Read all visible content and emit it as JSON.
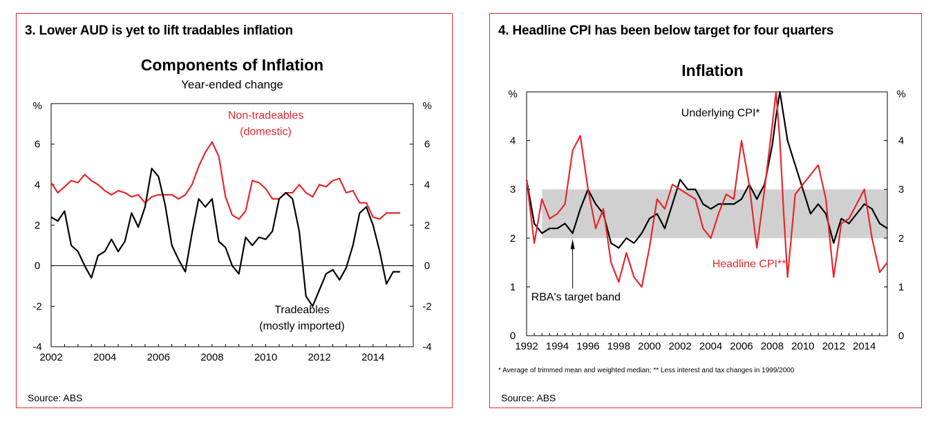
{
  "panels": [
    {
      "heading": "3. Lower AUD is yet to lift tradables inflation",
      "source": "Source: ABS"
    },
    {
      "heading": "4. Headline CPI has been below target for four quarters",
      "source": "Source: ABS"
    }
  ],
  "chart_data": [
    {
      "type": "line",
      "title": "Components of Inflation",
      "subtitle": "Year-ended change",
      "ylabel": "%",
      "ylim": [
        -4,
        8
      ],
      "yticks": [
        -4,
        -2,
        0,
        2,
        4,
        6
      ],
      "xlim": [
        2002,
        2015.5
      ],
      "xticks": [
        2002,
        2004,
        2006,
        2008,
        2010,
        2012,
        2014
      ],
      "grid": false,
      "zero_line": true,
      "series": [
        {
          "name": "Non-tradeables (domestic)",
          "label_lines": [
            "Non-tradeables",
            "(domestic)"
          ],
          "color": "#e8262c",
          "x": [
            2002.0,
            2002.25,
            2002.5,
            2002.75,
            2003.0,
            2003.25,
            2003.5,
            2003.75,
            2004.0,
            2004.25,
            2004.5,
            2004.75,
            2005.0,
            2005.25,
            2005.5,
            2005.75,
            2006.0,
            2006.25,
            2006.5,
            2006.75,
            2007.0,
            2007.25,
            2007.5,
            2007.75,
            2008.0,
            2008.25,
            2008.5,
            2008.75,
            2009.0,
            2009.25,
            2009.5,
            2009.75,
            2010.0,
            2010.25,
            2010.5,
            2010.75,
            2011.0,
            2011.25,
            2011.5,
            2011.75,
            2012.0,
            2012.25,
            2012.5,
            2012.75,
            2013.0,
            2013.25,
            2013.5,
            2013.75,
            2014.0,
            2014.25,
            2014.5,
            2014.75,
            2015.0
          ],
          "values": [
            4.1,
            3.6,
            3.9,
            4.2,
            4.1,
            4.5,
            4.2,
            4.0,
            3.7,
            3.5,
            3.7,
            3.6,
            3.4,
            3.5,
            3.1,
            3.4,
            3.5,
            3.5,
            3.5,
            3.3,
            3.5,
            4.0,
            4.9,
            5.6,
            6.1,
            5.4,
            3.4,
            2.5,
            2.3,
            2.7,
            4.2,
            4.1,
            3.8,
            3.3,
            3.3,
            3.6,
            3.6,
            4.0,
            3.6,
            3.4,
            4.0,
            3.9,
            4.2,
            4.3,
            3.6,
            3.7,
            3.1,
            3.1,
            2.4,
            2.3,
            2.6,
            2.6,
            2.6
          ]
        },
        {
          "name": "Tradeables (mostly imported)",
          "label_lines": [
            "Tradeables",
            "(mostly imported)"
          ],
          "color": "#000000",
          "x": [
            2002.0,
            2002.25,
            2002.5,
            2002.75,
            2003.0,
            2003.25,
            2003.5,
            2003.75,
            2004.0,
            2004.25,
            2004.5,
            2004.75,
            2005.0,
            2005.25,
            2005.5,
            2005.75,
            2006.0,
            2006.25,
            2006.5,
            2006.75,
            2007.0,
            2007.25,
            2007.5,
            2007.75,
            2008.0,
            2008.25,
            2008.5,
            2008.75,
            2009.0,
            2009.25,
            2009.5,
            2009.75,
            2010.0,
            2010.25,
            2010.5,
            2010.75,
            2011.0,
            2011.25,
            2011.5,
            2011.75,
            2012.0,
            2012.25,
            2012.5,
            2012.75,
            2013.0,
            2013.25,
            2013.5,
            2013.75,
            2014.0,
            2014.25,
            2014.5,
            2014.75,
            2015.0
          ],
          "values": [
            2.4,
            2.2,
            2.7,
            1.0,
            0.7,
            0.0,
            -0.6,
            0.5,
            0.7,
            1.3,
            0.7,
            1.2,
            2.6,
            1.9,
            2.9,
            4.8,
            4.4,
            3.0,
            1.0,
            0.3,
            -0.3,
            1.6,
            3.3,
            2.9,
            3.3,
            1.2,
            0.9,
            0.0,
            -0.4,
            1.4,
            1.0,
            1.4,
            1.3,
            1.7,
            3.3,
            3.6,
            3.3,
            1.7,
            -1.5,
            -2.0,
            -1.2,
            -0.4,
            -0.2,
            -0.7,
            -0.1,
            1.0,
            2.6,
            2.9,
            2.0,
            0.7,
            -0.9,
            -0.3,
            -0.3
          ]
        }
      ]
    },
    {
      "type": "line",
      "title": "Inflation",
      "ylabel": "%",
      "ylim": [
        0,
        5
      ],
      "yticks": [
        0,
        1,
        2,
        3,
        4
      ],
      "xlim": [
        1992,
        2015.5
      ],
      "xticks": [
        1992,
        1994,
        1996,
        1998,
        2000,
        2002,
        2004,
        2006,
        2008,
        2010,
        2012,
        2014
      ],
      "grid": false,
      "band": {
        "label": "RBA's target band",
        "range": [
          2,
          3
        ],
        "color": "#d0d0d0"
      },
      "footnote": "* Average of trimmed mean and weighted median; ** Less interest and tax changes in 1999/2000",
      "series": [
        {
          "name": "Underlying CPI*",
          "color": "#000000",
          "x": [
            1992.0,
            1992.5,
            1993.0,
            1993.5,
            1994.0,
            1994.5,
            1995.0,
            1995.5,
            1996.0,
            1996.5,
            1997.0,
            1997.5,
            1998.0,
            1998.5,
            1999.0,
            1999.5,
            2000.0,
            2000.5,
            2001.0,
            2001.5,
            2002.0,
            2002.5,
            2003.0,
            2003.5,
            2004.0,
            2004.5,
            2005.0,
            2005.5,
            2006.0,
            2006.5,
            2007.0,
            2007.5,
            2008.0,
            2008.25,
            2008.5,
            2008.75,
            2009.0,
            2009.5,
            2010.0,
            2010.5,
            2011.0,
            2011.5,
            2012.0,
            2012.5,
            2013.0,
            2013.5,
            2014.0,
            2014.5,
            2015.0,
            2015.5
          ],
          "values": [
            3.2,
            2.3,
            2.1,
            2.2,
            2.2,
            2.3,
            2.1,
            2.6,
            3.0,
            2.7,
            2.5,
            1.9,
            1.8,
            2.0,
            1.9,
            2.1,
            2.4,
            2.5,
            2.2,
            2.7,
            3.2,
            3.0,
            3.0,
            2.7,
            2.6,
            2.7,
            2.7,
            2.7,
            2.8,
            3.1,
            2.8,
            3.1,
            3.9,
            4.5,
            5.0,
            4.5,
            4.0,
            3.5,
            3.0,
            2.5,
            2.7,
            2.5,
            1.9,
            2.4,
            2.3,
            2.5,
            2.7,
            2.6,
            2.3,
            2.2
          ]
        },
        {
          "name": "Headline CPI**",
          "color": "#e8262c",
          "x": [
            1992.0,
            1992.5,
            1993.0,
            1993.5,
            1994.0,
            1994.5,
            1995.0,
            1995.5,
            1996.0,
            1996.5,
            1997.0,
            1997.5,
            1998.0,
            1998.5,
            1999.0,
            1999.5,
            2000.0,
            2000.5,
            2001.0,
            2001.5,
            2002.0,
            2002.5,
            2003.0,
            2003.5,
            2004.0,
            2004.5,
            2005.0,
            2005.5,
            2006.0,
            2006.5,
            2007.0,
            2007.5,
            2008.0,
            2008.25,
            2008.5,
            2008.75,
            2009.0,
            2009.5,
            2010.0,
            2010.5,
            2011.0,
            2011.5,
            2012.0,
            2012.5,
            2013.0,
            2013.5,
            2014.0,
            2014.5,
            2015.0,
            2015.5
          ],
          "values": [
            3.2,
            1.9,
            2.8,
            2.4,
            2.5,
            2.7,
            3.8,
            4.1,
            3.0,
            2.2,
            2.6,
            1.5,
            1.1,
            1.7,
            1.2,
            1.0,
            1.8,
            2.8,
            2.6,
            3.1,
            3.0,
            2.9,
            2.8,
            2.2,
            2.0,
            2.5,
            2.9,
            2.8,
            4.0,
            3.1,
            1.8,
            3.0,
            4.3,
            5.0,
            4.0,
            2.5,
            1.2,
            2.9,
            3.1,
            3.3,
            3.5,
            2.8,
            1.2,
            2.3,
            2.4,
            2.7,
            3.0,
            2.0,
            1.3,
            1.5
          ]
        }
      ]
    }
  ]
}
